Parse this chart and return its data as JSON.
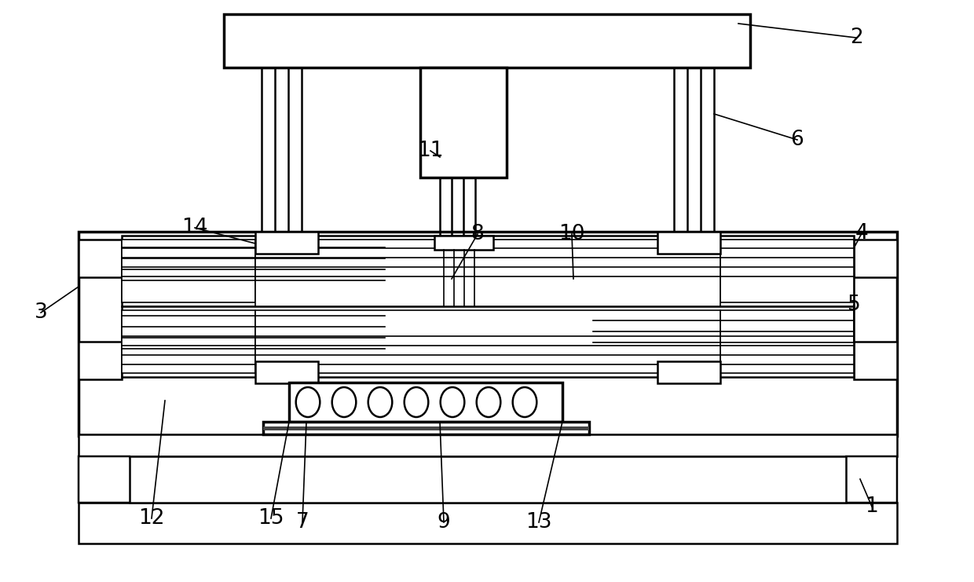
{
  "bg_color": "#ffffff",
  "line_color": "#000000",
  "fig_width": 12.4,
  "fig_height": 7.41,
  "dpi": 100
}
